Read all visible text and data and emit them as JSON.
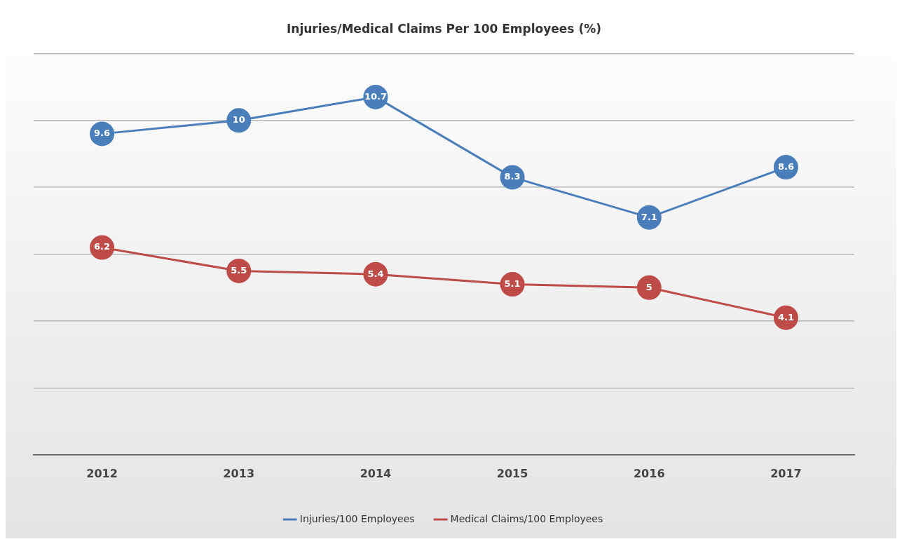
{
  "chart_data": {
    "type": "line",
    "title": "Injuries/Medical Claims Per 100 Employees (%)",
    "categories": [
      "2012",
      "2013",
      "2014",
      "2015",
      "2016",
      "2017"
    ],
    "series": [
      {
        "name": "Injuries/100 Employees",
        "color": "#4a7ebb",
        "values": [
          9.6,
          10,
          10.7,
          8.3,
          7.1,
          8.6
        ]
      },
      {
        "name": "Medical Claims/100 Employees",
        "color": "#be4b48",
        "values": [
          6.2,
          5.5,
          5.4,
          5.1,
          5,
          4.1
        ]
      }
    ],
    "ylim": [
      0,
      12
    ],
    "yticks": [
      {
        "value": 0,
        "label": null
      },
      {
        "value": 2,
        "label": null
      },
      {
        "value": 4,
        "label": null
      },
      {
        "value": 6,
        "label": null
      },
      {
        "value": 8,
        "label": null
      },
      {
        "value": 10,
        "label": null
      },
      {
        "value": 12,
        "label": null
      }
    ],
    "tick_labels": "x",
    "grid": "y",
    "legend": "bottom",
    "marker": "circle",
    "line_style": "solid",
    "data_labels": true
  }
}
